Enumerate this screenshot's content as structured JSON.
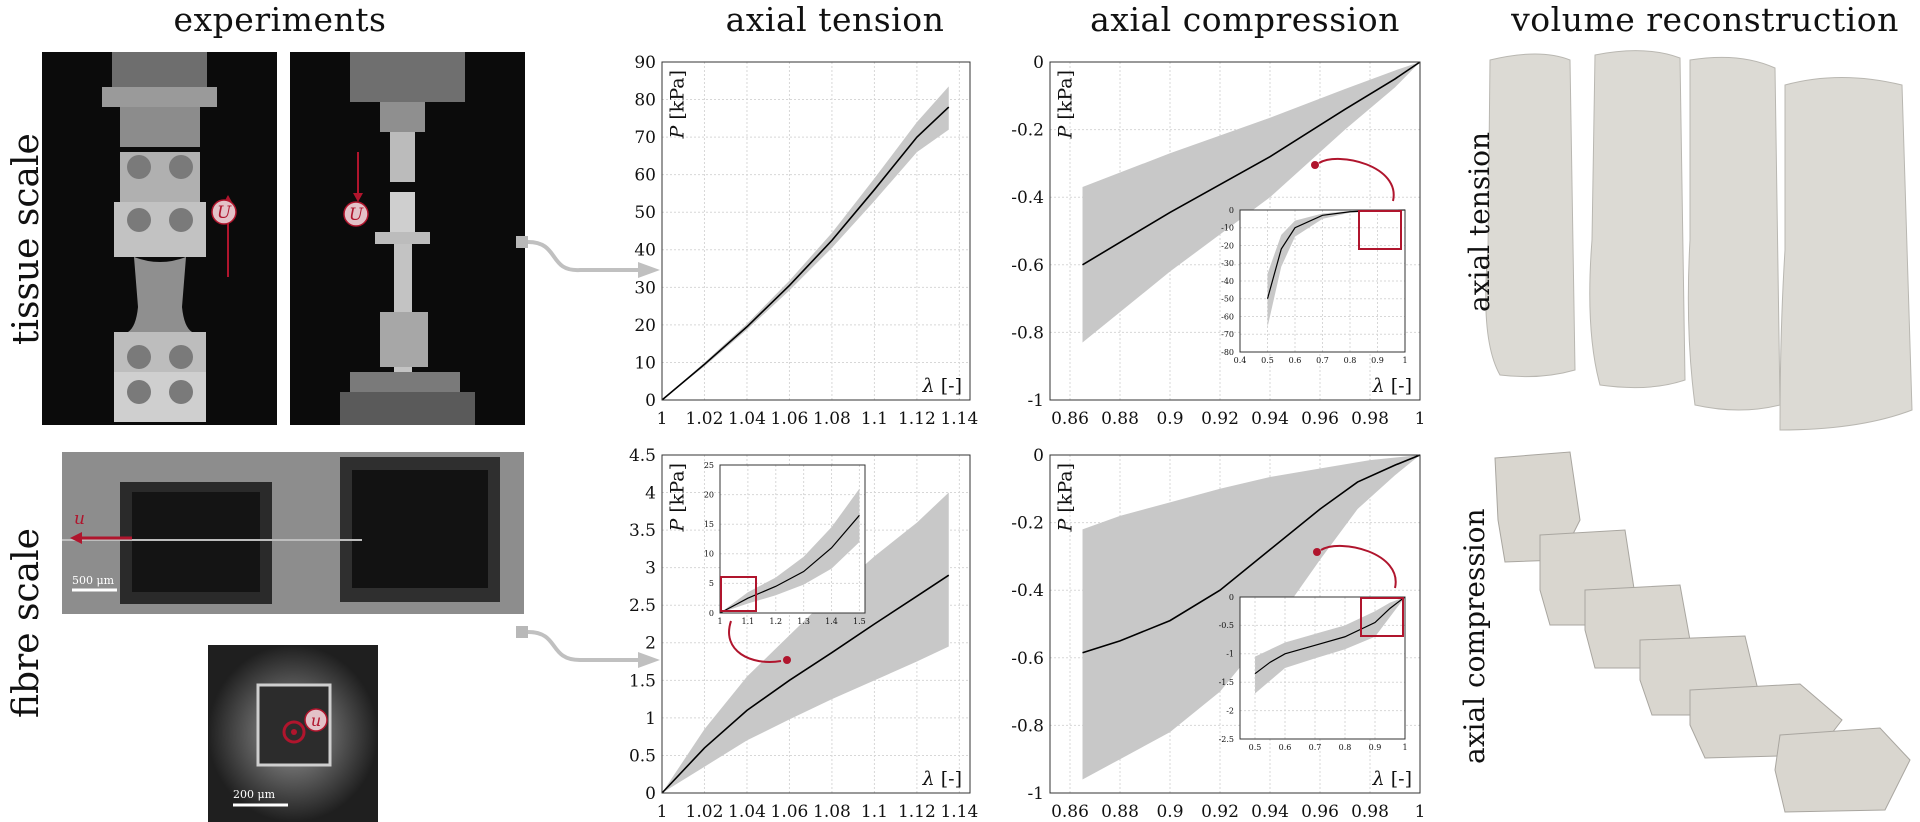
{
  "headings": {
    "experiments": "experiments",
    "tension": "axial tension",
    "compression": "axial compression",
    "reconstruction": "volume reconstruction"
  },
  "row_labels": {
    "tissue": "tissue scale",
    "fibre": "fibre scale"
  },
  "photo_labels": {
    "disp_U1": "U",
    "disp_U2": "U",
    "disp_u": "u",
    "disp_u2": "u",
    "scale_500": "500 μm",
    "scale_200": "200 μm"
  },
  "recon_labels": {
    "tension": "axial tension",
    "compression": "axial compression"
  },
  "colors": {
    "accent": "#b0152d",
    "band": "#c8c8c8",
    "line": "#000000",
    "connector": "#b8b8b8"
  },
  "chart_data": [
    {
      "id": "tissue_tension",
      "type": "line",
      "ylabel_sym": "P",
      "ylabel_unit": "[kPa]",
      "xlabel_sym": "λ",
      "xlabel_unit": "[-]",
      "xlim": [
        1,
        1.145
      ],
      "ylim": [
        0,
        90
      ],
      "xticks": [
        "1",
        "1.02",
        "1.04",
        "1.06",
        "1.08",
        "1.1",
        "1.12",
        "1.14"
      ],
      "yticks": [
        "0",
        "10",
        "20",
        "30",
        "40",
        "50",
        "60",
        "70",
        "80",
        "90"
      ],
      "mean": [
        [
          1,
          0
        ],
        [
          1.02,
          9.5
        ],
        [
          1.04,
          19.5
        ],
        [
          1.06,
          30.5
        ],
        [
          1.08,
          42.5
        ],
        [
          1.1,
          56
        ],
        [
          1.12,
          70
        ],
        [
          1.135,
          78
        ]
      ],
      "upper": [
        [
          1,
          0
        ],
        [
          1.02,
          10
        ],
        [
          1.04,
          20.3
        ],
        [
          1.06,
          31.8
        ],
        [
          1.08,
          44.5
        ],
        [
          1.1,
          59
        ],
        [
          1.12,
          74
        ],
        [
          1.135,
          83.5
        ]
      ],
      "lower": [
        [
          1,
          0
        ],
        [
          1.02,
          9
        ],
        [
          1.04,
          18.7
        ],
        [
          1.06,
          29.2
        ],
        [
          1.08,
          40.5
        ],
        [
          1.1,
          53
        ],
        [
          1.12,
          66
        ],
        [
          1.135,
          72
        ]
      ]
    },
    {
      "id": "tissue_compression",
      "type": "line",
      "ylabel_sym": "P",
      "ylabel_unit": "[kPa]",
      "xlabel_sym": "λ",
      "xlabel_unit": "[-]",
      "xlim": [
        0.852,
        1.0
      ],
      "ylim": [
        -1,
        0
      ],
      "xticks": [
        "0.86",
        "0.88",
        "0.9",
        "0.92",
        "0.94",
        "0.96",
        "0.98",
        "1"
      ],
      "yticks": [
        "-1",
        "-0.8",
        "-0.6",
        "-0.4",
        "-0.2",
        "0"
      ],
      "mean": [
        [
          0.865,
          -0.6
        ],
        [
          0.9,
          -0.445
        ],
        [
          0.94,
          -0.28
        ],
        [
          0.97,
          -0.14
        ],
        [
          0.99,
          -0.05
        ],
        [
          1,
          0
        ]
      ],
      "upper": [
        [
          0.865,
          -0.37
        ],
        [
          0.9,
          -0.27
        ],
        [
          0.94,
          -0.165
        ],
        [
          0.97,
          -0.08
        ],
        [
          0.99,
          -0.025
        ],
        [
          1,
          0
        ]
      ],
      "lower": [
        [
          0.865,
          -0.83
        ],
        [
          0.9,
          -0.62
        ],
        [
          0.94,
          -0.4
        ],
        [
          0.97,
          -0.2
        ],
        [
          0.99,
          -0.075
        ],
        [
          1,
          0
        ]
      ],
      "inset": {
        "xlim": [
          0.4,
          1.0
        ],
        "ylim": [
          -80,
          0
        ],
        "xticks": [
          "0.4",
          "0.5",
          "0.6",
          "0.7",
          "0.8",
          "0.9",
          "1"
        ],
        "yticks": [
          "-80",
          "-70",
          "-60",
          "-50",
          "-40",
          "-30",
          "-20",
          "-10",
          "0"
        ],
        "mean": [
          [
            0.5,
            -50
          ],
          [
            0.55,
            -22
          ],
          [
            0.6,
            -10
          ],
          [
            0.7,
            -3
          ],
          [
            0.8,
            -1
          ],
          [
            0.9,
            -0.3
          ],
          [
            1,
            0
          ]
        ],
        "upper": [
          [
            0.5,
            -36
          ],
          [
            0.55,
            -14
          ],
          [
            0.6,
            -6
          ],
          [
            0.7,
            -2
          ],
          [
            0.8,
            -0.5
          ],
          [
            0.9,
            -0.1
          ],
          [
            1,
            0
          ]
        ],
        "lower": [
          [
            0.5,
            -66
          ],
          [
            0.55,
            -32
          ],
          [
            0.6,
            -15
          ],
          [
            0.7,
            -5
          ],
          [
            0.8,
            -1.5
          ],
          [
            0.9,
            -0.5
          ],
          [
            1,
            0
          ]
        ]
      }
    },
    {
      "id": "fibre_tension",
      "type": "line",
      "ylabel_sym": "P",
      "ylabel_unit": "[kPa]",
      "xlabel_sym": "λ",
      "xlabel_unit": "[-]",
      "xlim": [
        1,
        1.145
      ],
      "ylim": [
        0,
        4.5
      ],
      "xticks": [
        "1",
        "1.02",
        "1.04",
        "1.06",
        "1.08",
        "1.1",
        "1.12",
        "1.14"
      ],
      "yticks": [
        "0",
        "0.5",
        "1",
        "1.5",
        "2",
        "2.5",
        "3",
        "3.5",
        "4",
        "4.5"
      ],
      "mean": [
        [
          1,
          0
        ],
        [
          1.02,
          0.6
        ],
        [
          1.04,
          1.1
        ],
        [
          1.06,
          1.5
        ],
        [
          1.08,
          1.87
        ],
        [
          1.1,
          2.25
        ],
        [
          1.12,
          2.62
        ],
        [
          1.135,
          2.9
        ]
      ],
      "upper": [
        [
          1,
          0
        ],
        [
          1.02,
          0.85
        ],
        [
          1.04,
          1.55
        ],
        [
          1.06,
          2.1
        ],
        [
          1.08,
          2.65
        ],
        [
          1.1,
          3.15
        ],
        [
          1.12,
          3.6
        ],
        [
          1.135,
          4.0
        ]
      ],
      "lower": [
        [
          1,
          0
        ],
        [
          1.02,
          0.35
        ],
        [
          1.04,
          0.7
        ],
        [
          1.06,
          0.98
        ],
        [
          1.08,
          1.25
        ],
        [
          1.1,
          1.5
        ],
        [
          1.12,
          1.75
        ],
        [
          1.135,
          1.95
        ]
      ],
      "inset": {
        "xlim": [
          1.0,
          1.52
        ],
        "ylim": [
          0,
          25
        ],
        "xticks": [
          "1",
          "1.1",
          "1.2",
          "1.3",
          "1.4",
          "1.5"
        ],
        "yticks": [
          "0",
          "5",
          "10",
          "15",
          "20",
          "25"
        ],
        "mean": [
          [
            1,
            0
          ],
          [
            1.1,
            2.5
          ],
          [
            1.2,
            4.5
          ],
          [
            1.3,
            7
          ],
          [
            1.4,
            11
          ],
          [
            1.5,
            16.5
          ]
        ],
        "upper": [
          [
            1,
            0
          ],
          [
            1.1,
            3.5
          ],
          [
            1.2,
            6
          ],
          [
            1.3,
            9.5
          ],
          [
            1.4,
            14.5
          ],
          [
            1.5,
            21
          ]
        ],
        "lower": [
          [
            1,
            0
          ],
          [
            1.1,
            1.6
          ],
          [
            1.2,
            3
          ],
          [
            1.3,
            4.8
          ],
          [
            1.4,
            7.5
          ],
          [
            1.5,
            12
          ]
        ]
      }
    },
    {
      "id": "fibre_compression",
      "type": "line",
      "ylabel_sym": "P",
      "ylabel_unit": "[kPa]",
      "xlabel_sym": "λ",
      "xlabel_unit": "[-]",
      "xlim": [
        0.852,
        1.0
      ],
      "ylim": [
        -1,
        0
      ],
      "xticks": [
        "0.86",
        "0.88",
        "0.9",
        "0.92",
        "0.94",
        "0.96",
        "0.98",
        "1"
      ],
      "yticks": [
        "-1",
        "-0.8",
        "-0.6",
        "-0.4",
        "-0.2",
        "0"
      ],
      "mean": [
        [
          0.865,
          -0.585
        ],
        [
          0.88,
          -0.55
        ],
        [
          0.9,
          -0.49
        ],
        [
          0.92,
          -0.4
        ],
        [
          0.94,
          -0.28
        ],
        [
          0.96,
          -0.16
        ],
        [
          0.975,
          -0.08
        ],
        [
          0.99,
          -0.03
        ],
        [
          1,
          0
        ]
      ],
      "upper": [
        [
          0.865,
          -0.22
        ],
        [
          0.88,
          -0.18
        ],
        [
          0.9,
          -0.14
        ],
        [
          0.92,
          -0.1
        ],
        [
          0.94,
          -0.065
        ],
        [
          0.96,
          -0.04
        ],
        [
          0.98,
          -0.015
        ],
        [
          1,
          0
        ]
      ],
      "lower": [
        [
          0.865,
          -0.96
        ],
        [
          0.88,
          -0.9
        ],
        [
          0.9,
          -0.82
        ],
        [
          0.92,
          -0.7
        ],
        [
          0.94,
          -0.52
        ],
        [
          0.96,
          -0.31
        ],
        [
          0.975,
          -0.16
        ],
        [
          0.99,
          -0.06
        ],
        [
          1,
          0
        ]
      ],
      "inset": {
        "xlim": [
          0.45,
          1.0
        ],
        "ylim": [
          -2.5,
          0
        ],
        "xticks": [
          "0.5",
          "0.6",
          "0.7",
          "0.8",
          "0.9",
          "1"
        ],
        "yticks": [
          "-2.5",
          "-2",
          "-1.5",
          "-1",
          "-0.5",
          "0"
        ],
        "mean": [
          [
            0.5,
            -1.35
          ],
          [
            0.55,
            -1.15
          ],
          [
            0.6,
            -1.0
          ],
          [
            0.7,
            -0.85
          ],
          [
            0.8,
            -0.7
          ],
          [
            0.9,
            -0.45
          ],
          [
            0.95,
            -0.2
          ],
          [
            1,
            0
          ]
        ],
        "upper": [
          [
            0.5,
            -1.05
          ],
          [
            0.6,
            -0.8
          ],
          [
            0.7,
            -0.65
          ],
          [
            0.8,
            -0.5
          ],
          [
            0.9,
            -0.25
          ],
          [
            0.95,
            -0.1
          ],
          [
            1,
            0
          ]
        ],
        "lower": [
          [
            0.5,
            -1.7
          ],
          [
            0.6,
            -1.25
          ],
          [
            0.7,
            -1.08
          ],
          [
            0.8,
            -0.92
          ],
          [
            0.9,
            -0.7
          ],
          [
            0.95,
            -0.35
          ],
          [
            1,
            0
          ]
        ]
      }
    }
  ]
}
